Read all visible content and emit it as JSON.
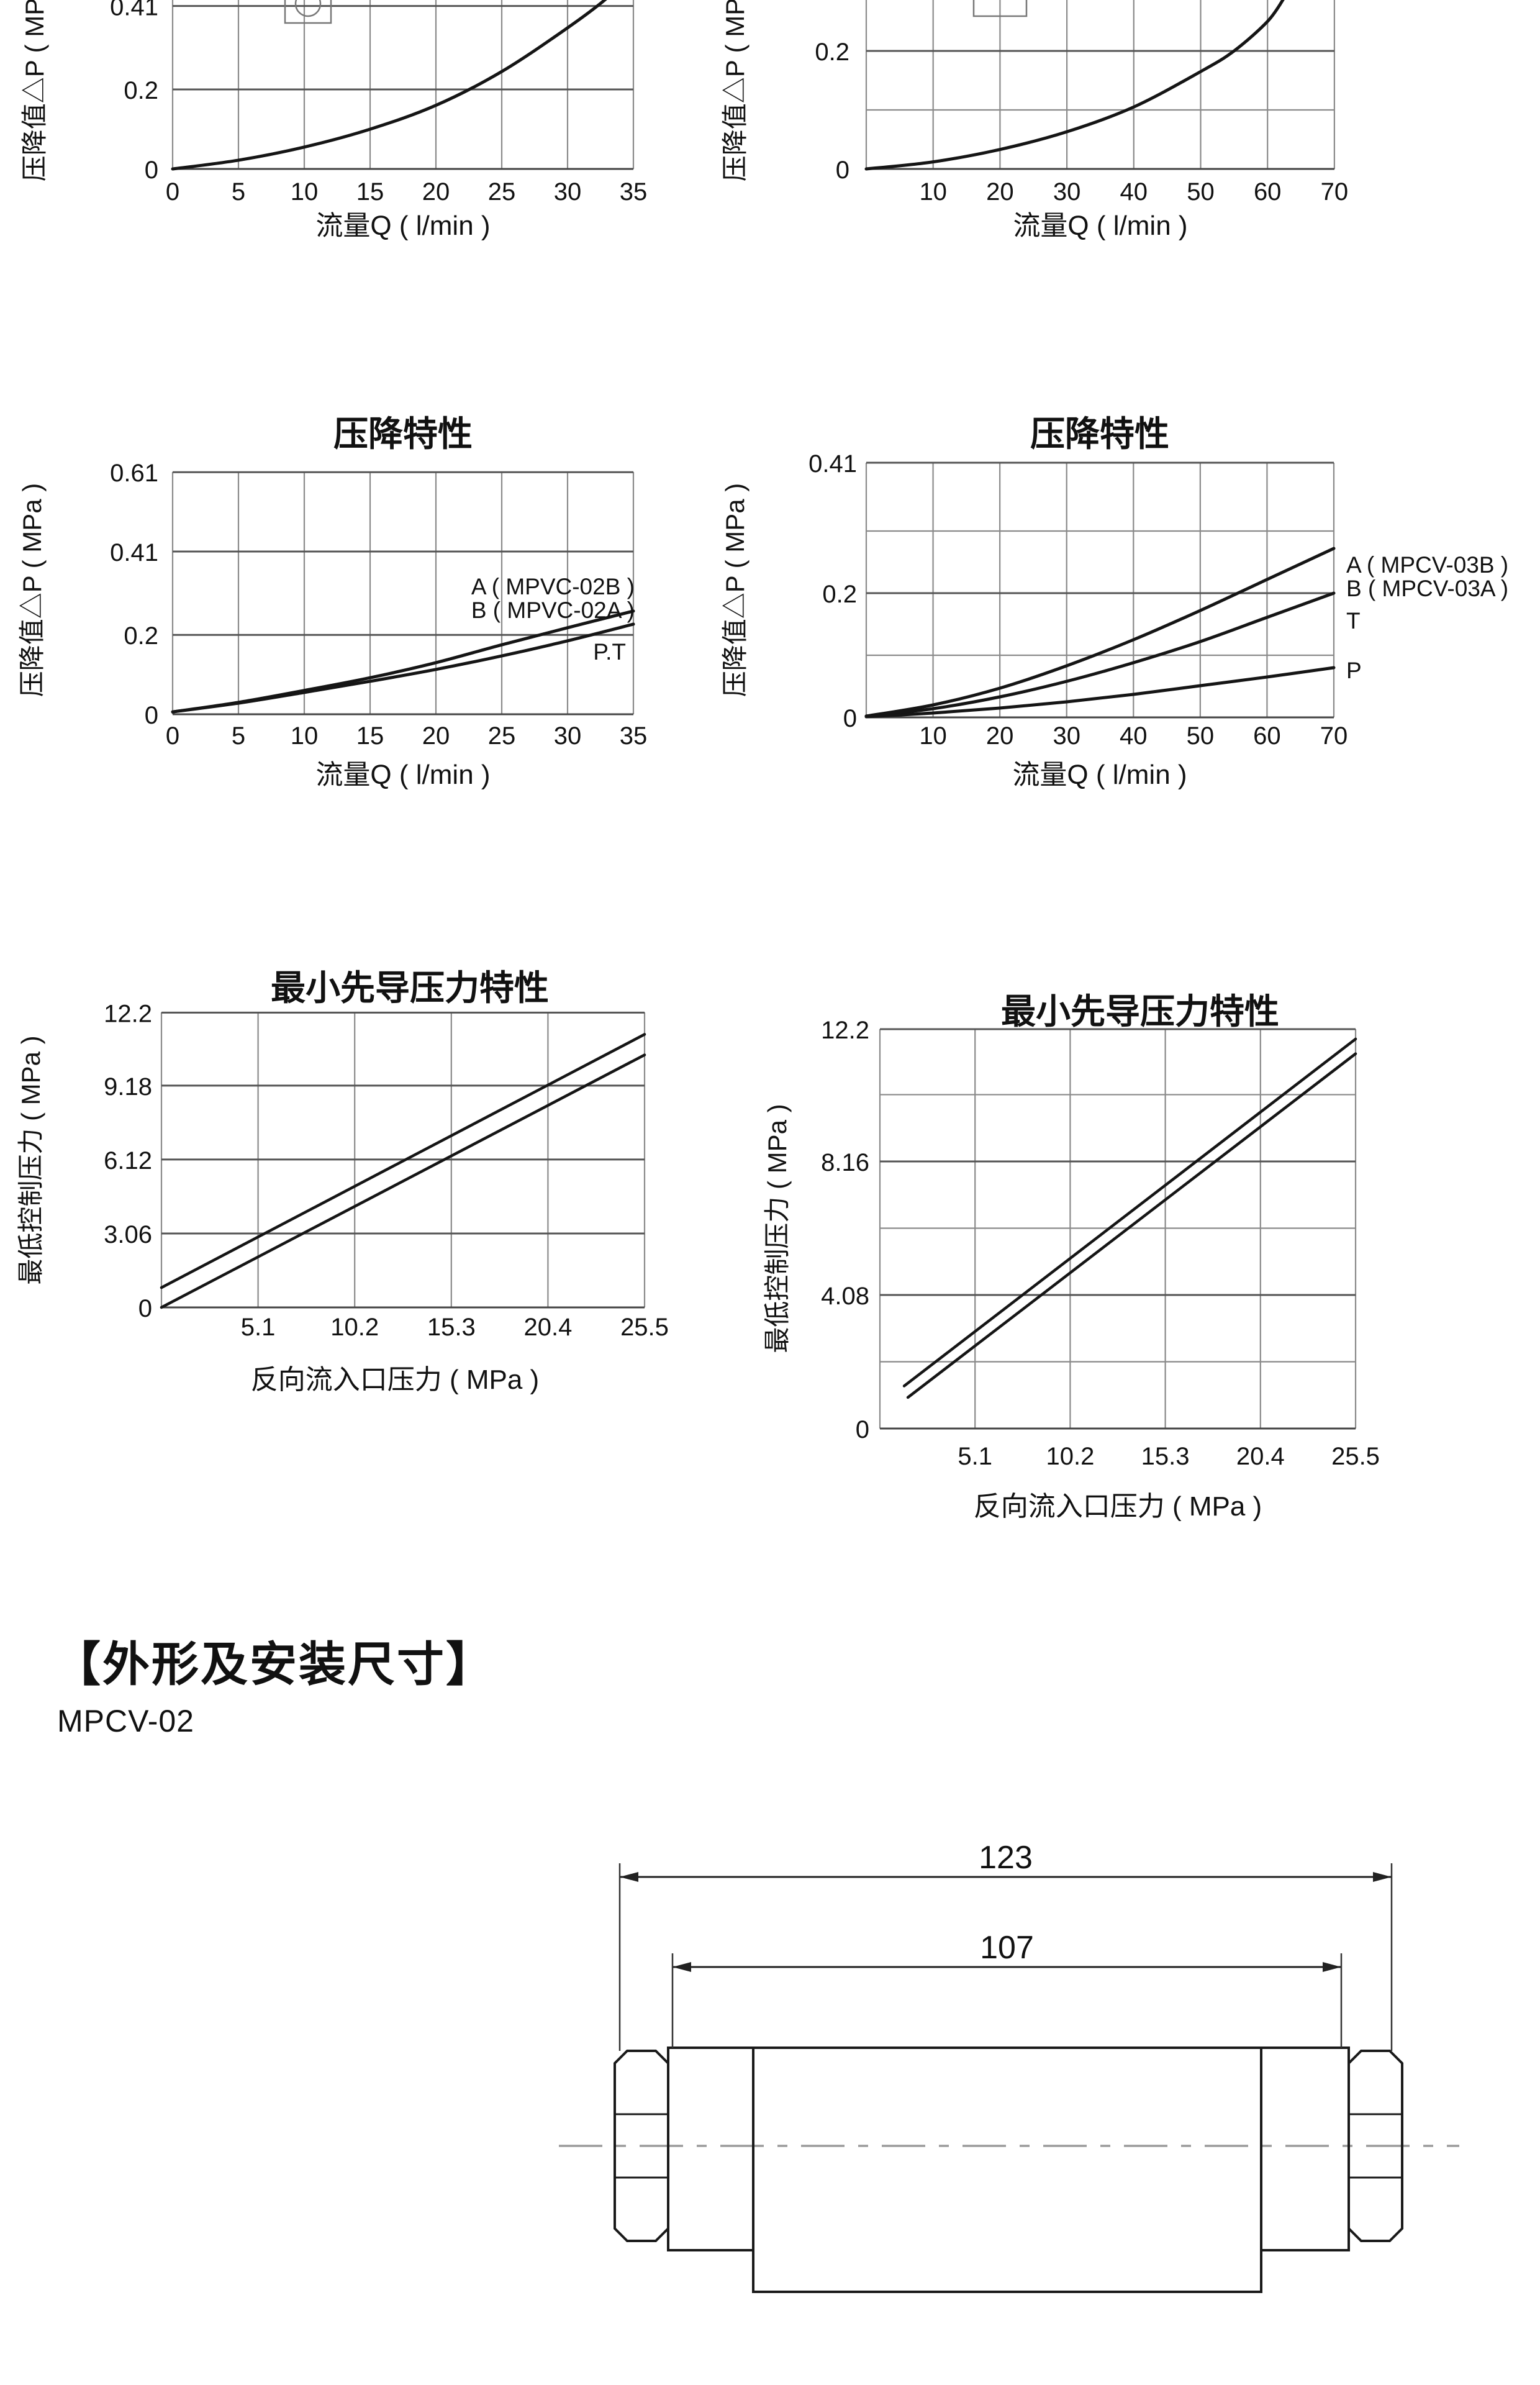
{
  "page": {
    "background": "#ffffff",
    "text_color": "#111111",
    "grid_color": "#8a8a8a",
    "major_grid_color": "#555555",
    "curve_color": "#151515",
    "centerline_color": "#9a9a9a"
  },
  "section_bottom": {
    "heading": "【外形及安装尺寸】",
    "model": "MPCV-02"
  },
  "drawing": {
    "dim_overall": "123",
    "dim_inner": "107"
  },
  "chart_data": [
    {
      "id": "c1",
      "type": "line",
      "title": "",
      "note": "top-left chart, cropped at top of page",
      "xlabel": "流量Q ( l/min )",
      "ylabel": "压降值△P ( MPa )",
      "x_ticks": [
        0,
        5,
        10,
        15,
        20,
        25,
        30,
        35
      ],
      "y_ticks": [
        {
          "value": 0,
          "label": "0"
        },
        {
          "value": 0.2,
          "label": "0.2"
        },
        {
          "value": 0.41,
          "label": "0.41"
        }
      ],
      "xlim": [
        0,
        35
      ],
      "ylim": [
        0,
        0.43
      ],
      "grid": true,
      "series": [
        {
          "name": "pressure-drop",
          "points": [
            [
              0,
              0
            ],
            [
              5,
              0.022
            ],
            [
              10,
              0.055
            ],
            [
              15,
              0.1
            ],
            [
              20,
              0.16
            ],
            [
              25,
              0.245
            ],
            [
              30,
              0.355
            ],
            [
              33,
              0.43
            ],
            [
              34.2,
              0.475
            ]
          ]
        }
      ],
      "curve_labels": []
    },
    {
      "id": "c2",
      "type": "line",
      "title": "",
      "note": "top-right chart, cropped at top of page",
      "xlabel": "流量Q ( l/min )",
      "ylabel": "压降值△P ( MPa )",
      "x_ticks": [
        10,
        20,
        30,
        40,
        50,
        60,
        70
      ],
      "y_ticks": [
        {
          "value": 0,
          "label": "0"
        },
        {
          "value": 0.1,
          "label": ""
        },
        {
          "value": 0.2,
          "label": "0.2"
        }
      ],
      "xlim": [
        0,
        70
      ],
      "ylim": [
        0,
        0.28
      ],
      "grid": true,
      "series": [
        {
          "name": "pressure-drop",
          "points": [
            [
              0,
              0
            ],
            [
              10,
              0.012
            ],
            [
              20,
              0.033
            ],
            [
              30,
              0.063
            ],
            [
              40,
              0.105
            ],
            [
              50,
              0.165
            ],
            [
              55,
              0.2
            ],
            [
              60,
              0.25
            ],
            [
              62.5,
              0.29
            ]
          ]
        }
      ],
      "curve_labels": []
    },
    {
      "id": "c3",
      "type": "line",
      "title": "压降特性",
      "xlabel": "流量Q ( l/min )",
      "ylabel": "压降值△P ( MPa )",
      "x_ticks": [
        0,
        5,
        10,
        15,
        20,
        25,
        30,
        35
      ],
      "y_ticks": [
        {
          "value": 0,
          "label": "0"
        },
        {
          "value": 0.2,
          "label": "0.2"
        },
        {
          "value": 0.41,
          "label": "0.41"
        },
        {
          "value": 0.61,
          "label": "0.61"
        }
      ],
      "xlim": [
        0,
        35
      ],
      "ylim": [
        0,
        0.61
      ],
      "grid": true,
      "series": [
        {
          "name": "A (MPVC-02B)",
          "points": [
            [
              0,
              0.006
            ],
            [
              5,
              0.03
            ],
            [
              10,
              0.06
            ],
            [
              15,
              0.092
            ],
            [
              20,
              0.13
            ],
            [
              25,
              0.175
            ],
            [
              30,
              0.218
            ],
            [
              35,
              0.26
            ]
          ]
        },
        {
          "name": "B (MPVC-02A)",
          "points": [
            [
              0,
              0.006
            ],
            [
              5,
              0.028
            ],
            [
              10,
              0.055
            ],
            [
              15,
              0.083
            ],
            [
              20,
              0.113
            ],
            [
              25,
              0.147
            ],
            [
              30,
              0.185
            ],
            [
              35,
              0.227
            ]
          ]
        }
      ],
      "curve_labels": [
        "A ( MPVC-02B )",
        "B ( MPVC-02A )",
        "P.T"
      ]
    },
    {
      "id": "c4",
      "type": "line",
      "title": "压降特性",
      "xlabel": "流量Q ( l/min )",
      "ylabel": "压降值△P ( MPa )",
      "x_ticks": [
        10,
        20,
        30,
        40,
        50,
        60,
        70
      ],
      "y_ticks": [
        {
          "value": 0,
          "label": "0"
        },
        {
          "value": 0.1,
          "label": ""
        },
        {
          "value": 0.2,
          "label": "0.2"
        },
        {
          "value": 0.3,
          "label": ""
        },
        {
          "value": 0.41,
          "label": "0.41"
        }
      ],
      "xlim": [
        0,
        70
      ],
      "ylim": [
        0,
        0.41
      ],
      "grid": true,
      "series": [
        {
          "name": "A (MPCV-03B) / B (MPCV-03A)",
          "points": [
            [
              0,
              0.002
            ],
            [
              10,
              0.02
            ],
            [
              20,
              0.047
            ],
            [
              30,
              0.083
            ],
            [
              40,
              0.125
            ],
            [
              50,
              0.172
            ],
            [
              60,
              0.222
            ],
            [
              70,
              0.272
            ]
          ]
        },
        {
          "name": "T",
          "points": [
            [
              0,
              0.002
            ],
            [
              10,
              0.014
            ],
            [
              20,
              0.033
            ],
            [
              30,
              0.058
            ],
            [
              40,
              0.088
            ],
            [
              50,
              0.122
            ],
            [
              60,
              0.161
            ],
            [
              70,
              0.2
            ]
          ]
        },
        {
          "name": "P",
          "points": [
            [
              0,
              0.001
            ],
            [
              10,
              0.007
            ],
            [
              20,
              0.015
            ],
            [
              30,
              0.025
            ],
            [
              40,
              0.037
            ],
            [
              50,
              0.051
            ],
            [
              60,
              0.065
            ],
            [
              70,
              0.08
            ]
          ]
        }
      ],
      "curve_labels": [
        "A ( MPCV-03B )",
        "B ( MPCV-03A )",
        "T",
        "P"
      ]
    },
    {
      "id": "c5",
      "type": "line",
      "title": "最小先导压力特性",
      "xlabel": "反向流入口压力 ( MPa )",
      "ylabel": "最低控制压力 ( MPa )",
      "x_ticks": [
        5.1,
        10.2,
        15.3,
        20.4,
        25.5
      ],
      "y_ticks": [
        {
          "value": 0,
          "label": "0"
        },
        {
          "value": 3.06,
          "label": "3.06"
        },
        {
          "value": 6.12,
          "label": "6.12"
        },
        {
          "value": 9.18,
          "label": "9.18"
        },
        {
          "value": 12.2,
          "label": "12.2"
        }
      ],
      "xlim": [
        0,
        25.5
      ],
      "ylim": [
        0,
        12.2
      ],
      "grid": true,
      "series": [
        {
          "name": "upper-line",
          "points": [
            [
              0,
              0.82
            ],
            [
              25.5,
              11.3
            ]
          ]
        },
        {
          "name": "lower-line",
          "points": [
            [
              0,
              0
            ],
            [
              25.5,
              10.45
            ]
          ]
        }
      ],
      "curve_labels": []
    },
    {
      "id": "c6",
      "type": "line",
      "title": "最小先导压力特性",
      "xlabel": "反向流入口压力 ( MPa )",
      "ylabel": "最低控制压力 ( MPa )",
      "x_ticks": [
        5.1,
        10.2,
        15.3,
        20.4,
        25.5
      ],
      "y_ticks": [
        {
          "value": 0,
          "label": "0"
        },
        {
          "value": 2.04,
          "label": ""
        },
        {
          "value": 4.08,
          "label": "4.08"
        },
        {
          "value": 6.12,
          "label": ""
        },
        {
          "value": 8.16,
          "label": "8.16"
        },
        {
          "value": 10.2,
          "label": ""
        },
        {
          "value": 12.2,
          "label": "12.2"
        }
      ],
      "xlim": [
        0,
        25.5
      ],
      "ylim": [
        0,
        12.2
      ],
      "grid": true,
      "series": [
        {
          "name": "upper-line",
          "points": [
            [
              1.3,
              1.3
            ],
            [
              25.5,
              11.9
            ]
          ]
        },
        {
          "name": "lower-line",
          "points": [
            [
              1.5,
              0.95
            ],
            [
              25.5,
              11.45
            ]
          ]
        }
      ],
      "curve_labels": []
    }
  ]
}
